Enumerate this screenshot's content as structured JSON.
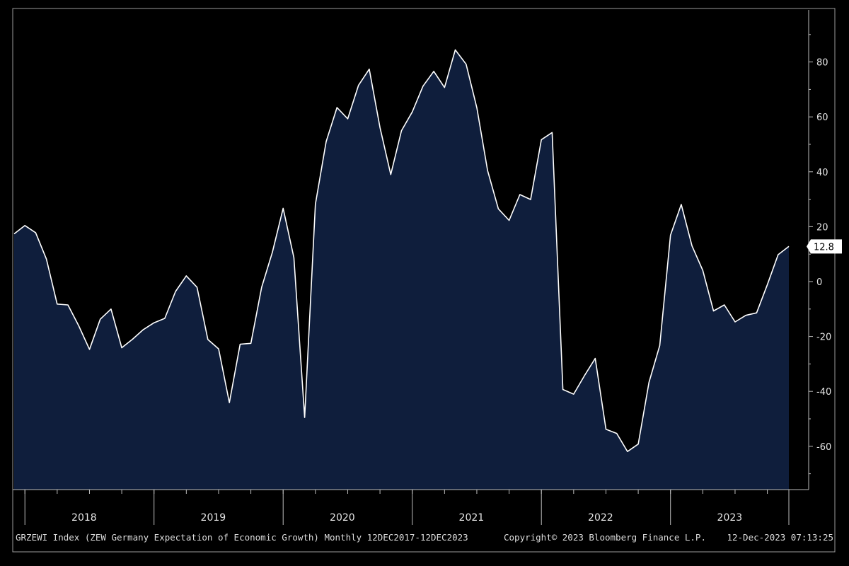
{
  "colors": {
    "background": "#000000",
    "area_fill": "#0f1e3c",
    "line": "#ffffff",
    "axis": "#bdbdbd",
    "text": "#e6e6e6",
    "last_value_box": "#ffffff"
  },
  "footer": {
    "ticker_description": "GRZEWI Index (ZEW Germany Expectation of Economic Growth)  Monthly 12DEC2017-12DEC2023",
    "copyright": "Copyright© 2023 Bloomberg Finance L.P.",
    "timestamp": "12-Dec-2023  07:13:25"
  },
  "chart_data": {
    "type": "area",
    "x_start": "2017-12",
    "x_end": "2023-12",
    "frequency": "Monthly",
    "y_ticks": [
      80,
      60,
      40,
      20,
      0,
      -20,
      -40,
      -60
    ],
    "y_tick_labels": [
      "80",
      "60",
      "40",
      "20",
      "0",
      "-20",
      "-40",
      "-60"
    ],
    "ylim": [
      -76,
      98
    ],
    "year_labels": [
      "2018",
      "2019",
      "2020",
      "2021",
      "2022",
      "2023"
    ],
    "axis_position": "right",
    "grid": false,
    "last_value_label": "12.8",
    "series": [
      {
        "values": [
          17.4,
          20.4,
          17.8,
          8.2,
          -8.2,
          -8.5,
          -16.1,
          -24.7,
          -13.7,
          -10.0,
          -24.1,
          -21.0,
          -17.5,
          -15.0,
          -13.4,
          -3.6,
          2.1,
          -2.1,
          -21.1,
          -24.5,
          -44.1,
          -22.8,
          -22.5,
          -2.1,
          10.7,
          26.7,
          8.7,
          -49.5,
          28.2,
          51.0,
          63.4,
          59.3,
          71.5,
          77.4,
          56.1,
          39.0,
          55.0,
          61.8,
          71.2,
          76.6,
          70.7,
          84.4,
          79.2,
          63.3,
          40.4,
          26.5,
          22.3,
          31.7,
          29.9,
          51.7,
          54.3,
          -39.3,
          -41.0,
          -34.3,
          -28.0,
          -53.8,
          -55.3,
          -61.9,
          -59.2,
          -36.7,
          -23.3,
          16.9,
          28.1,
          13.0,
          4.1,
          -10.7,
          -8.5,
          -14.7,
          -12.3,
          -11.4,
          -1.1,
          9.8,
          12.8
        ]
      }
    ]
  }
}
